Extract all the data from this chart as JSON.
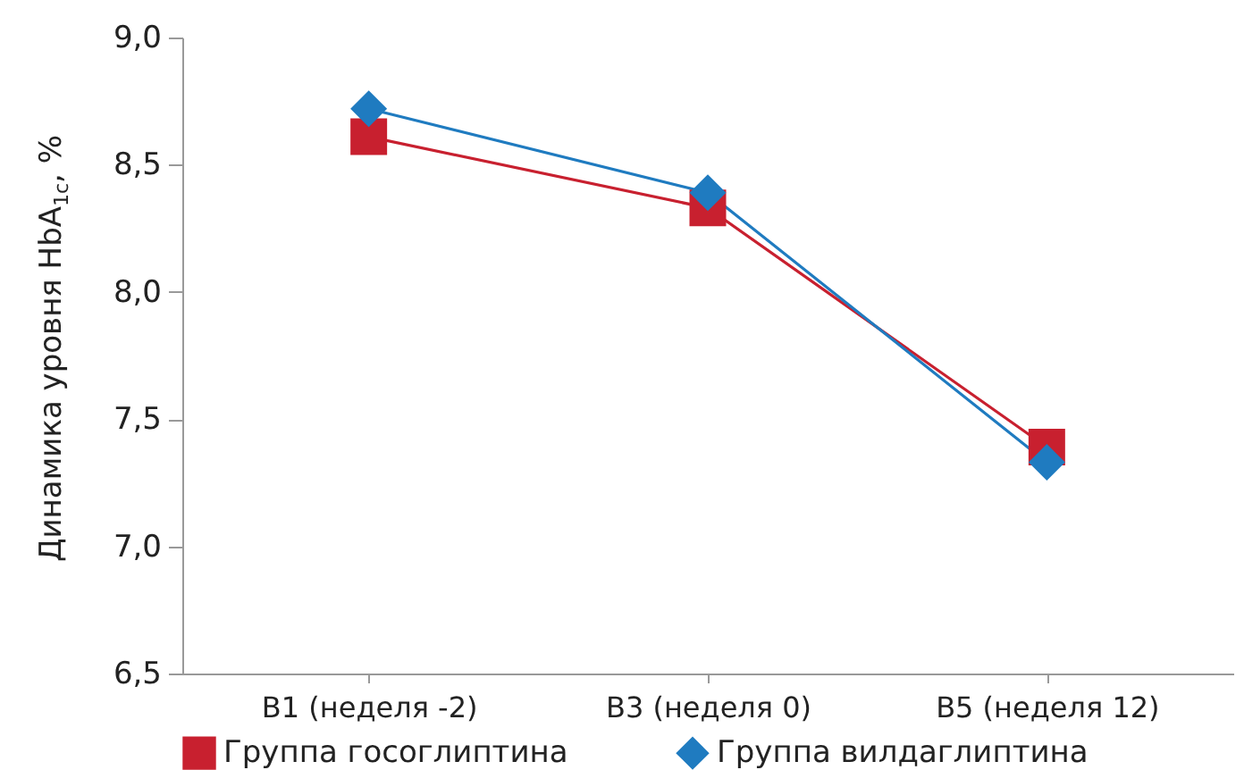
{
  "chart_data": {
    "type": "line",
    "ylabel": "Динамика уровня HbA$_{1c}$, %",
    "categories": [
      "B1 (неделя -2)",
      "B3 (неделя 0)",
      "B5 (неделя 12)"
    ],
    "series": [
      {
        "name": "Группа госоглиптина",
        "color": "#c8202f",
        "marker": "square",
        "values": [
          8.61,
          8.33,
          7.39
        ]
      },
      {
        "name": "Группа вилдаглиптина",
        "color": "#1f7bc0",
        "marker": "diamond",
        "values": [
          8.72,
          8.39,
          7.33
        ]
      }
    ],
    "ylim": [
      6.5,
      9.0
    ],
    "yticks": [
      {
        "value": 6.5,
        "label": "6,5"
      },
      {
        "value": 7,
        "label": "7,0"
      },
      {
        "value": 7.5,
        "label": "7,5"
      },
      {
        "value": 8,
        "label": "8,0"
      },
      {
        "value": 8.5,
        "label": "8,5"
      },
      {
        "value": 9,
        "label": "9,0"
      }
    ],
    "grid": false,
    "legend": "bottom",
    "line_style": "solid"
  }
}
